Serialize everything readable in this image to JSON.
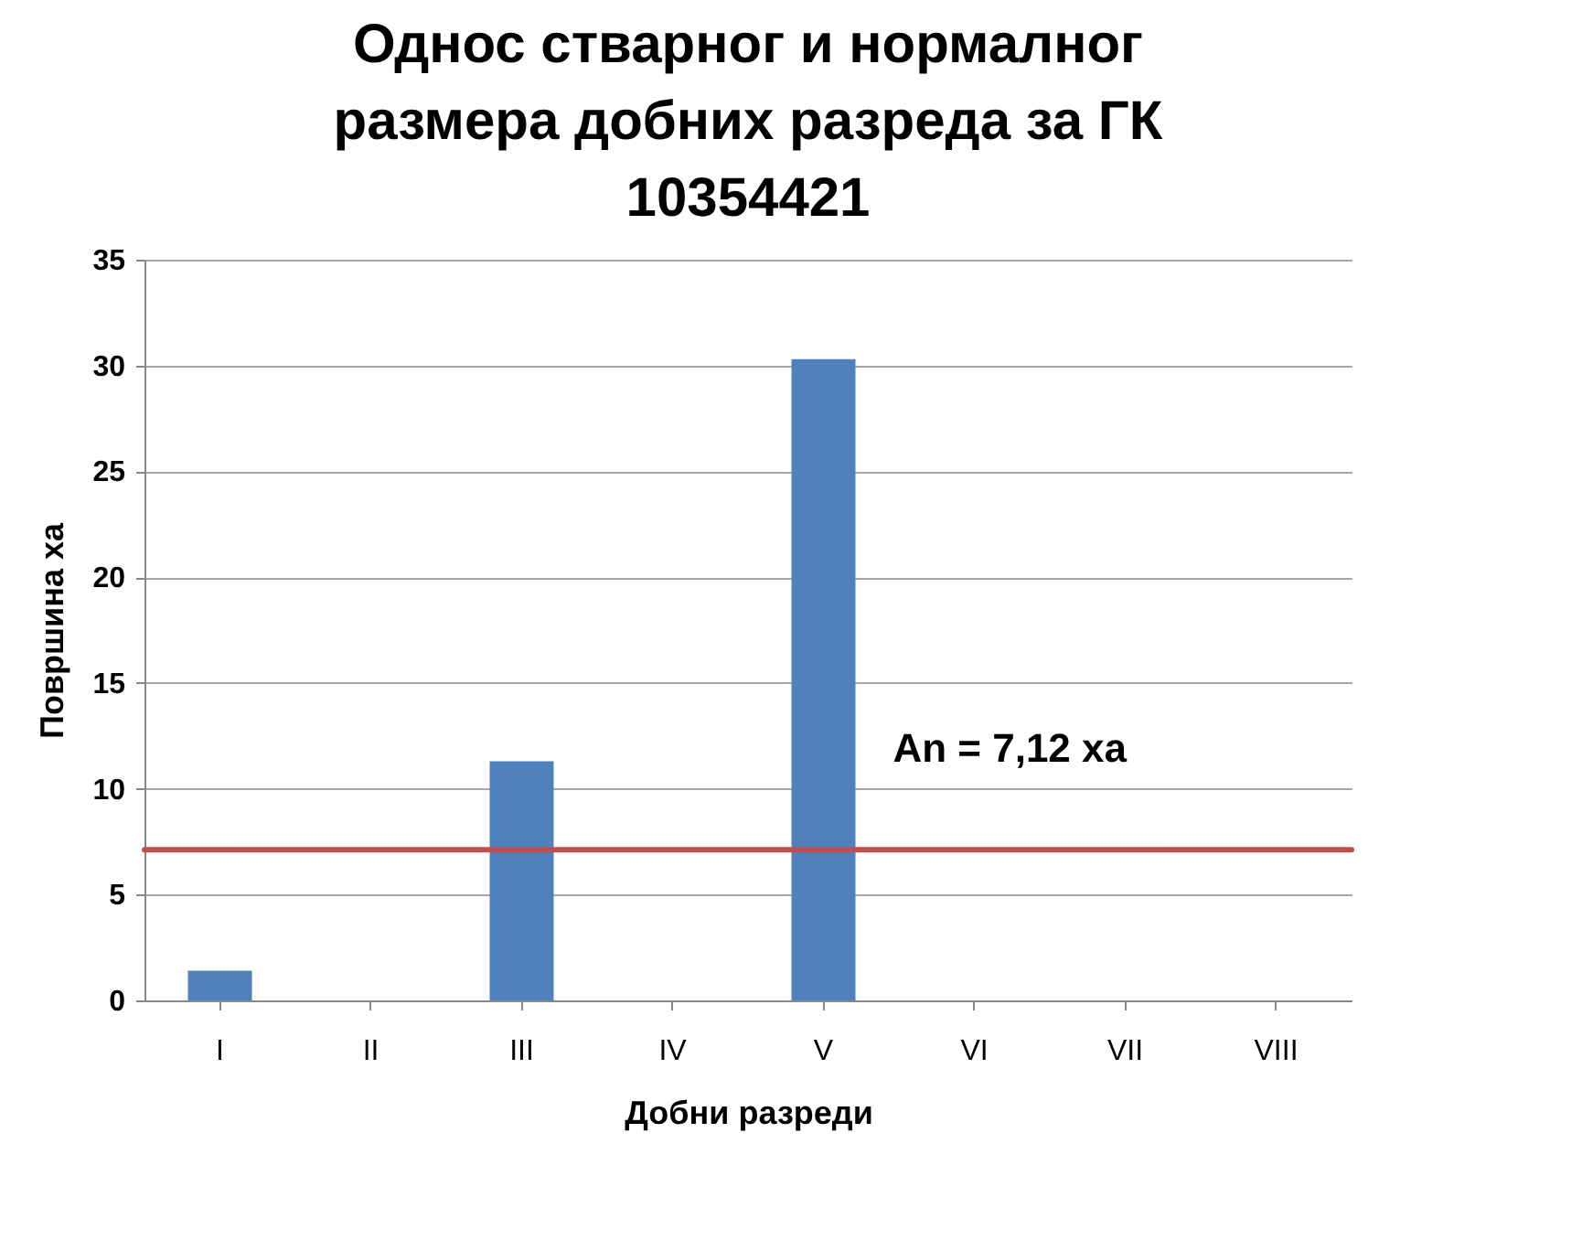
{
  "chart_data": {
    "type": "bar",
    "title": "Однос стварног и нормалног размера добних разреда за  ГК 10354421",
    "xlabel": "Добни разреди",
    "ylabel": "Површина ха",
    "categories": [
      "I",
      "II",
      "III",
      "IV",
      "V",
      "VI",
      "VII",
      "VIII"
    ],
    "values": [
      1.4,
      0,
      11.3,
      0,
      30.3,
      0,
      0,
      0
    ],
    "color": "#4f81bd",
    "ylim": [
      0,
      35
    ],
    "yticks": [
      0,
      5,
      10,
      15,
      20,
      25,
      30,
      35
    ],
    "grid": "y",
    "ref_lines": [
      {
        "axis": "y",
        "value": 7.12,
        "label": "An = 7,12 ха",
        "color": "#c0504d"
      }
    ]
  }
}
